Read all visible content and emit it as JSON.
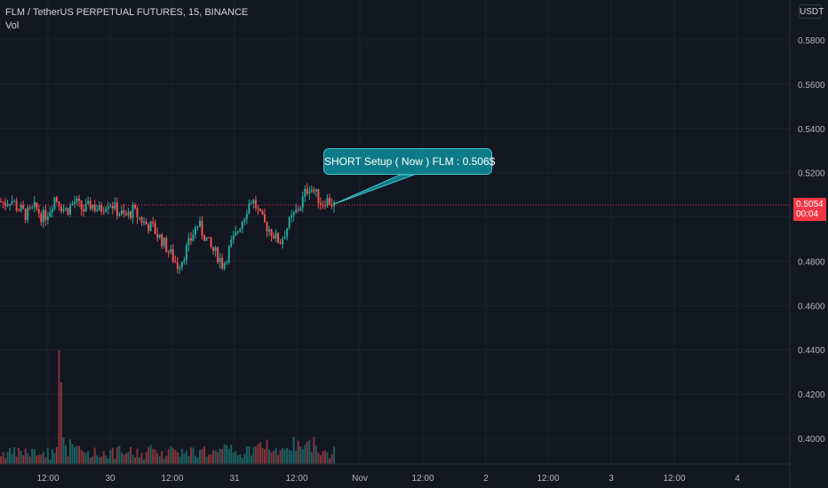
{
  "header": {
    "title": "FLM / TetherUS PERPETUAL FUTURES, 15, BINANCE",
    "volume_label": "Vol"
  },
  "currency": "USDT",
  "last_price": {
    "value": "0.5054",
    "countdown": "00:04"
  },
  "annotation": {
    "text": "SHORT Setup ( Now ) FLM : 0.506$"
  },
  "chart_data": {
    "type": "candlestick",
    "symbol": "FLM/USDT",
    "interval": "15",
    "exchange": "BINANCE",
    "y_ticks": [
      "0.5800",
      "0.5600",
      "0.5400",
      "0.5200",
      "0.5000",
      "0.4800",
      "0.4600",
      "0.4400",
      "0.4200",
      "0.4000"
    ],
    "ylim": [
      0.3955,
      0.5905
    ],
    "x_ticks": [
      "12:00",
      "30",
      "12:00",
      "31",
      "12:00",
      "Nov",
      "12:00",
      "2",
      "12:00",
      "3",
      "12:00",
      "4"
    ],
    "close_path": [
      0.507,
      0.506,
      0.508,
      0.507,
      0.504,
      0.503,
      0.501,
      0.502,
      0.504,
      0.503,
      0.5,
      0.501,
      0.504,
      0.509,
      0.507,
      0.504,
      0.503,
      0.505,
      0.507,
      0.505,
      0.503,
      0.504,
      0.506,
      0.504,
      0.503,
      0.505,
      0.507,
      0.506,
      0.503,
      0.502,
      0.5,
      0.501,
      0.503,
      0.501,
      0.499,
      0.497,
      0.496,
      0.495,
      0.492,
      0.49,
      0.487,
      0.484,
      0.481,
      0.478,
      0.481,
      0.485,
      0.489,
      0.494,
      0.497,
      0.493,
      0.49,
      0.486,
      0.484,
      0.482,
      0.478,
      0.483,
      0.488,
      0.491,
      0.496,
      0.5,
      0.505,
      0.508,
      0.505,
      0.5,
      0.497,
      0.495,
      0.493,
      0.49,
      0.489,
      0.493,
      0.497,
      0.5,
      0.503,
      0.506,
      0.511,
      0.514,
      0.512,
      0.509,
      0.506,
      0.508,
      0.507,
      0.5054
    ],
    "volume_peaks": [
      0.1,
      0.1,
      0.2,
      0.1,
      0.1,
      0.2,
      1.0,
      0.6,
      0.3,
      0.2,
      0.1,
      0.1,
      0.1,
      0.2,
      0.1,
      0.1,
      0.2,
      0.3,
      0.2,
      0.4,
      0.3,
      0.2,
      0.3,
      0.2,
      0.1,
      0.2,
      0.3,
      0.2,
      0.2,
      0.4,
      0.5,
      0.3,
      0.4,
      0.6,
      0.7,
      0.6,
      0.5,
      0.3
    ]
  }
}
